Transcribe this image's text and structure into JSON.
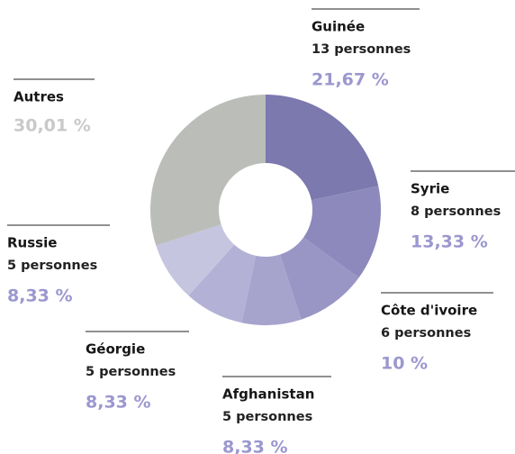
{
  "chart_data": {
    "type": "donut",
    "categories": [
      "Guinée",
      "Syrie",
      "Côte d'ivoire",
      "Afghanistan",
      "Géorgie",
      "Russie",
      "Autres"
    ],
    "details": [
      "13 personnes",
      "8 personnes",
      "6 personnes",
      "5 personnes",
      "5 personnes",
      "5 personnes",
      null
    ],
    "values": [
      21.67,
      13.33,
      10,
      8.33,
      8.33,
      8.33,
      30.01
    ],
    "value_labels": [
      "21,67 %",
      "13,33 %",
      "10 %",
      "8,33 %",
      "8,33 %",
      "8,33 %",
      "30,01 %"
    ],
    "colors": [
      "#7b79ae",
      "#8d89bd",
      "#9996c5",
      "#a6a3cd",
      "#b3b1d5",
      "#c6c5e0",
      "#bbbdb8"
    ],
    "value_label_colors": [
      "#9b97cf",
      "#9b97cf",
      "#9b97cf",
      "#9b97cf",
      "#9b97cf",
      "#9b97cf",
      "#c9c9c9"
    ]
  }
}
